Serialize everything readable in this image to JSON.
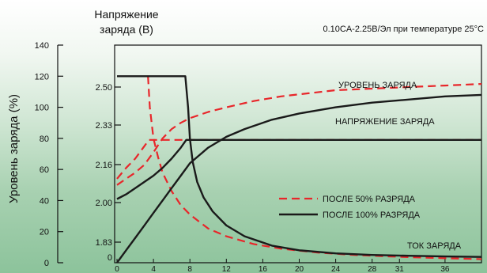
{
  "chart_data": {
    "type": "line",
    "title": "0.10CA-2.25В/Эл при температуре 25°C",
    "left_axis_label": "Уровень заряда (%)",
    "left_axis_ticks": [
      "0",
      "20",
      "40",
      "60",
      "80",
      "100",
      "120",
      "140"
    ],
    "left_axis_range": [
      0,
      140
    ],
    "right_axis_label_lines": [
      "Напряжение",
      "заряда (В)"
    ],
    "right_axis_ticks": [
      "0",
      "1.83",
      "2.00",
      "2.16",
      "2.33",
      "2.50"
    ],
    "x_ticks": [
      "0",
      "4",
      "8",
      "12",
      "16",
      "20",
      "24",
      "28",
      "31",
      "36"
    ],
    "x_range": [
      0,
      40
    ],
    "annotations": {
      "charge_level": "УРОВЕНЬ ЗАРЯДА",
      "charge_voltage": "НАПРЯЖЕНИЕ ЗАРЯДА",
      "charge_current": "ТОК ЗАРЯДА"
    },
    "legend": [
      {
        "label": "ПОСЛЕ 50% РАЗРЯДА",
        "style": "dashed",
        "color": "#e8262a"
      },
      {
        "label": "ПОСЛЕ 100% РАЗРЯДА",
        "style": "solid",
        "color": "#1a1a1a"
      }
    ],
    "legend_placement": "center-right",
    "grid": false,
    "series": [
      {
        "legend_ref": "ПОСЛЕ 50% РАЗРЯДА",
        "quantity": "charge level",
        "style": "dashed",
        "x": [
          0,
          1,
          2,
          3,
          4,
          5,
          6,
          7,
          8,
          10,
          12,
          15,
          18,
          21,
          24,
          28,
          32,
          36,
          40
        ],
        "y": [
          50,
          54,
          58,
          63,
          71,
          80,
          86,
          90,
          93,
          97,
          100,
          104,
          107,
          109,
          111,
          112,
          113,
          114,
          115
        ]
      },
      {
        "legend_ref": "ПОСЛЕ 50% РАЗРЯДА",
        "quantity": "charge voltage",
        "style": "dashed",
        "x": [
          0,
          1,
          2,
          3,
          3.5,
          40
        ],
        "y": [
          54,
          61,
          67,
          75,
          79,
          79
        ]
      },
      {
        "legend_ref": "ПОСЛЕ 50% РАЗРЯДА",
        "quantity": "charge current",
        "style": "dashed",
        "x": [
          3.4,
          3.6,
          4,
          4.5,
          5,
          6,
          7,
          8,
          10,
          12,
          15,
          18,
          22,
          26,
          30,
          34,
          38,
          40
        ],
        "y": [
          120,
          100,
          80,
          68,
          58,
          46,
          37,
          31,
          22,
          17,
          12,
          9,
          6.5,
          5,
          4,
          3.2,
          2.6,
          2.3
        ]
      },
      {
        "legend_ref": "ПОСЛЕ 100% РАЗРЯДА",
        "quantity": "charge level",
        "style": "solid",
        "x": [
          0,
          1,
          2,
          3,
          4,
          5,
          6,
          7,
          8,
          9,
          10,
          12,
          14,
          17,
          20,
          24,
          28,
          32,
          36,
          40
        ],
        "y": [
          0,
          8,
          16,
          24,
          32,
          40,
          48,
          56,
          64,
          69,
          74,
          81,
          86,
          92,
          96,
          100,
          103,
          105,
          107,
          108
        ]
      },
      {
        "legend_ref": "ПОСЛЕ 100% РАЗРЯДА",
        "quantity": "charge voltage",
        "style": "solid",
        "x": [
          0,
          1,
          2,
          3,
          4,
          5,
          6,
          7,
          7.6,
          40
        ],
        "y": [
          41,
          44,
          48,
          52,
          56,
          61,
          67,
          74,
          79,
          79
        ]
      },
      {
        "legend_ref": "ПОСЛЕ 100% РАЗРЯДА",
        "quantity": "charge current",
        "style": "solid",
        "x": [
          0,
          3,
          5,
          7.5,
          7.8,
          8,
          8.3,
          8.8,
          9.5,
          10.5,
          12,
          14,
          17,
          20,
          24,
          28,
          32,
          36,
          40
        ],
        "y": [
          120,
          120,
          120,
          120,
          100,
          80,
          65,
          52,
          42,
          33,
          24,
          17,
          11,
          8,
          6,
          5,
          4.5,
          4,
          3.7
        ]
      }
    ]
  }
}
